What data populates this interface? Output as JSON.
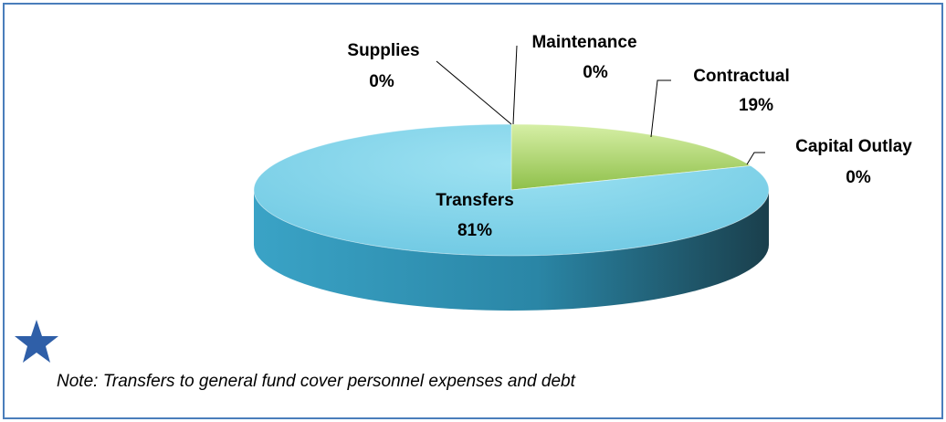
{
  "chart_data": {
    "type": "pie",
    "categories": [
      "Supplies",
      "Maintenance",
      "Contractual",
      "Capital Outlay",
      "Transfers"
    ],
    "values": [
      0,
      0,
      19,
      0,
      81
    ],
    "value_labels": [
      "0%",
      "0%",
      "19%",
      "0%",
      "81%"
    ],
    "colors": [
      "#4f81bd",
      "#c0504d",
      "#a9d468",
      "#8064a2",
      "#7fd3ea"
    ],
    "note": "Note: Transfers to general fund cover personnel expenses and debt"
  }
}
